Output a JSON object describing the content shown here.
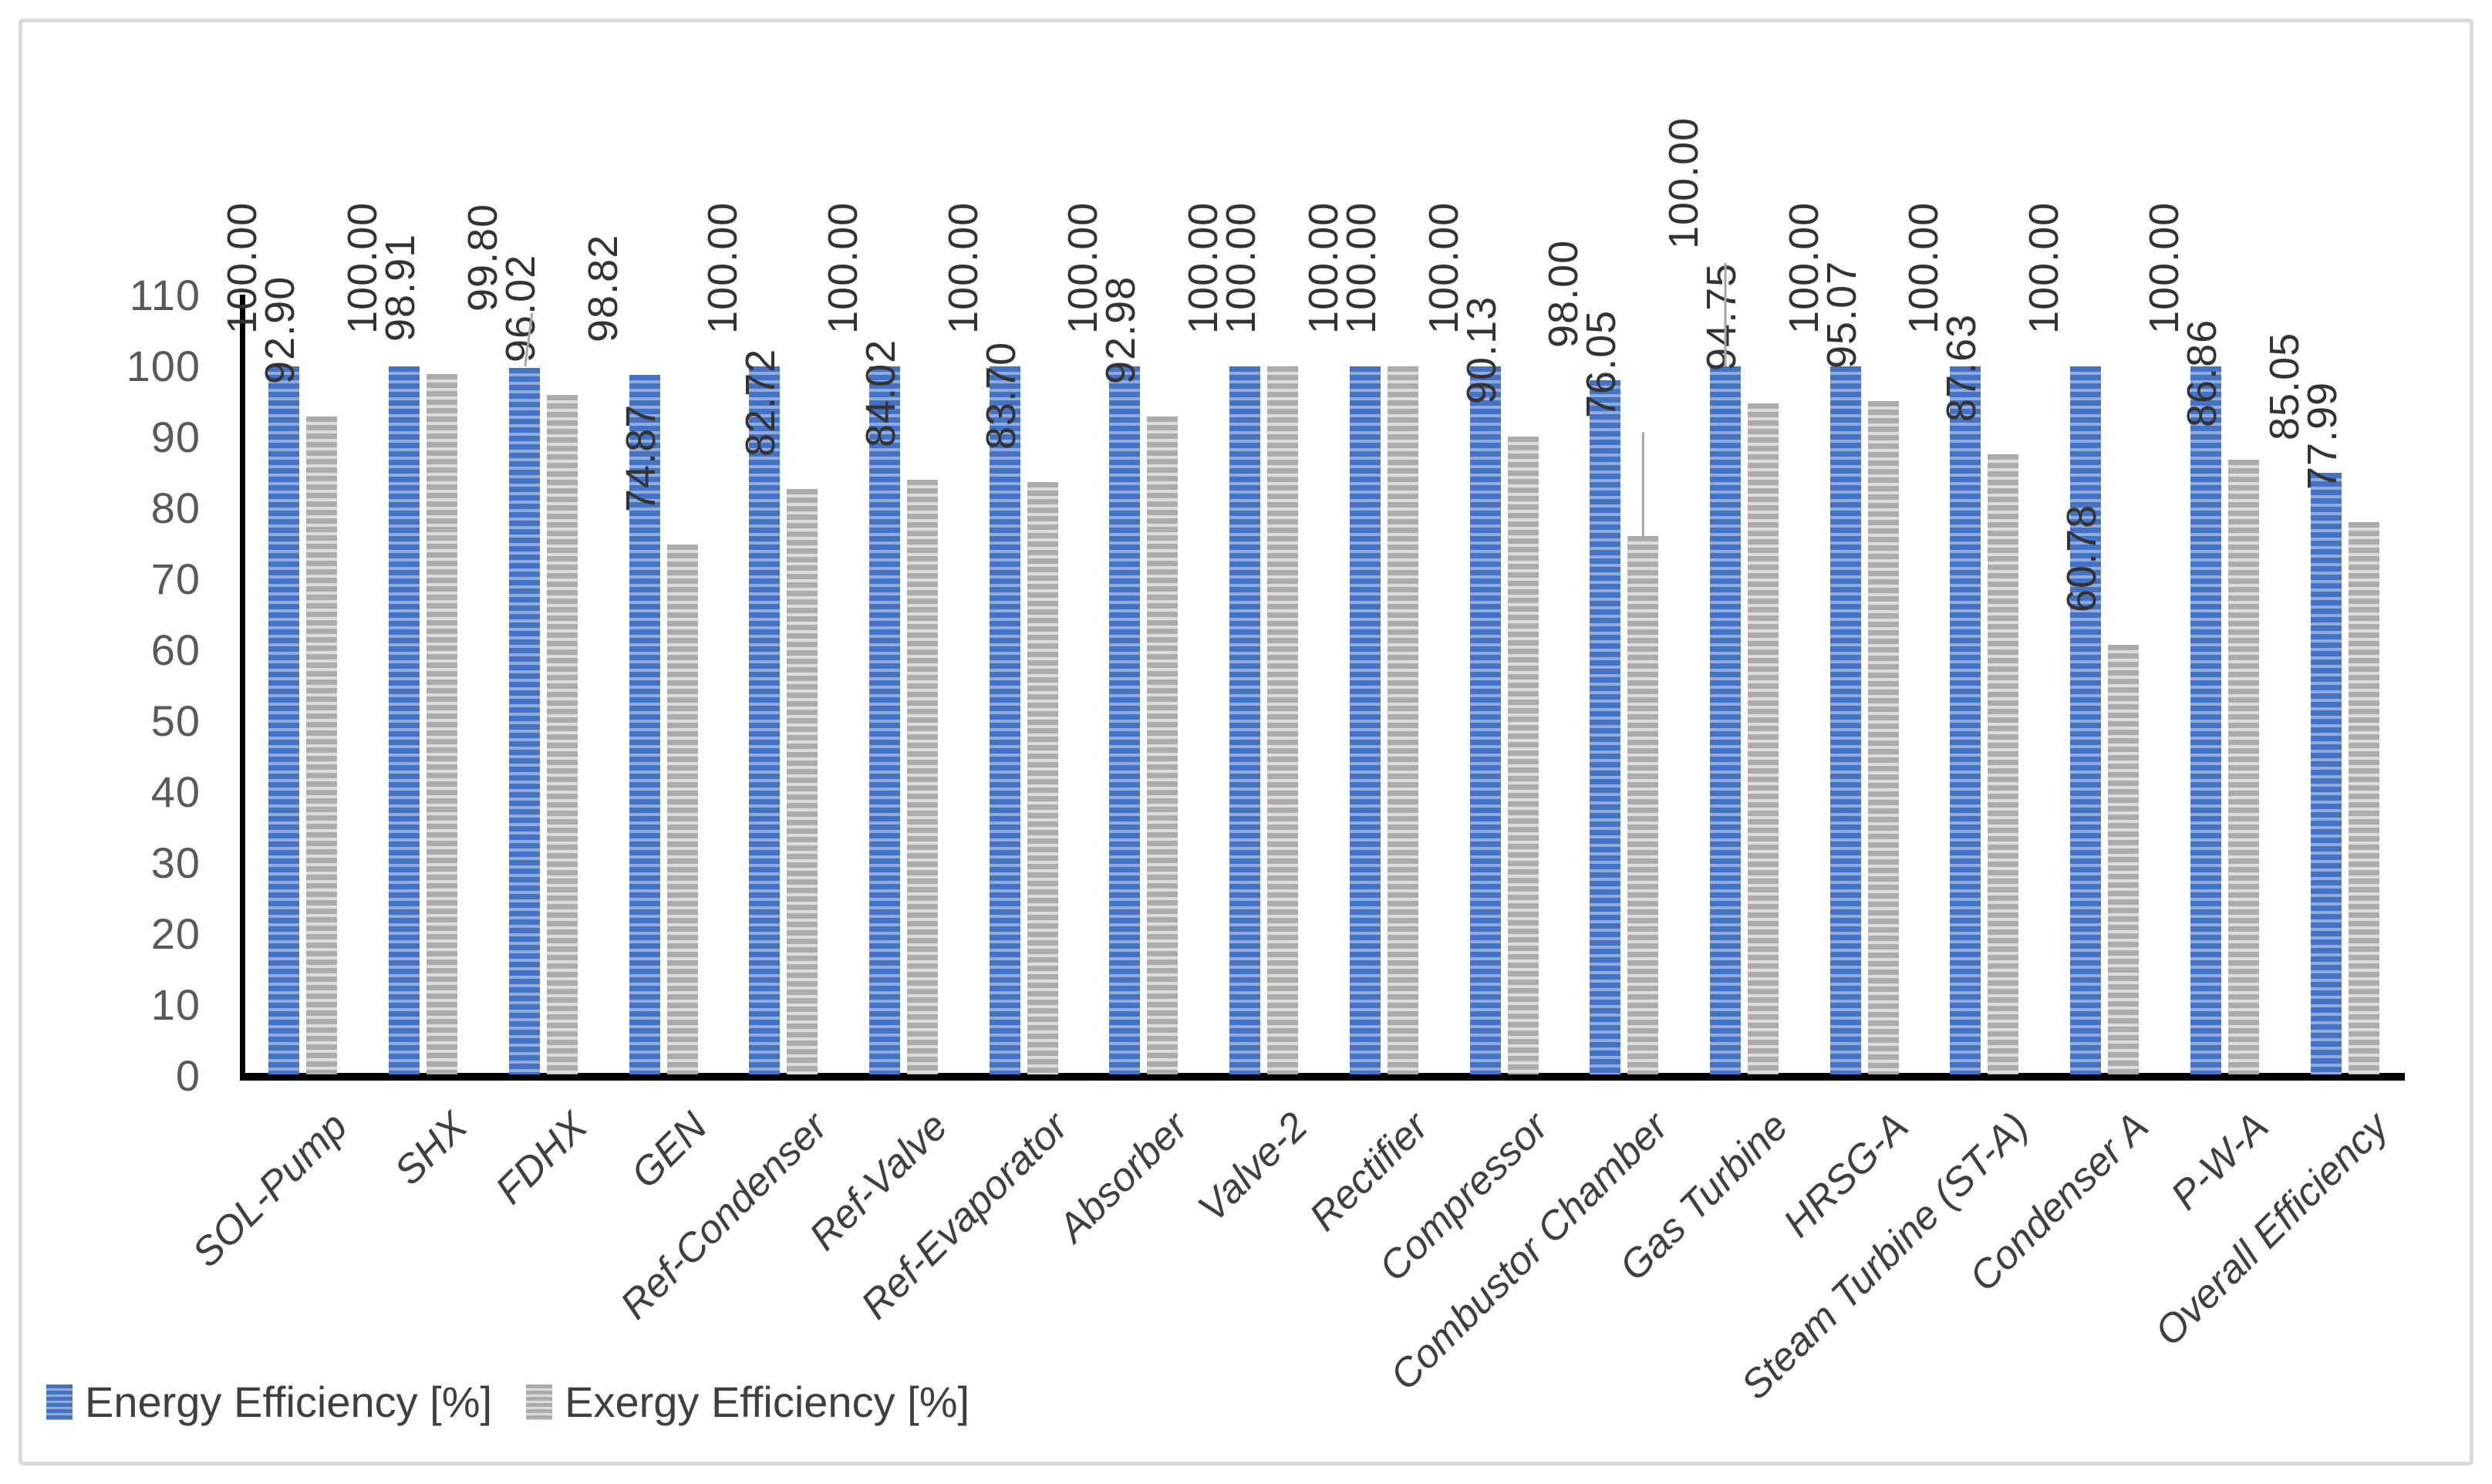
{
  "chart_data": {
    "type": "bar",
    "title": "",
    "categories": [
      "SOL-Pump",
      "SHX",
      "FDHX",
      "GEN",
      "Ref-Condenser",
      "Ref-Valve",
      "Ref-Evaporator",
      "Absorber",
      "Valve-2",
      "Rectifier",
      "Compressor",
      "Combustor Chamber",
      "Gas Turbine",
      "HRSG-A",
      "Steam Turbine (ST-A)",
      "Condenser A",
      "P-W-A",
      "Overall Efficiency"
    ],
    "series": [
      {
        "name": "Energy Efficiency [%]",
        "color": "#4472C4",
        "stripe_color": "#8FAADC",
        "values": [
          100.0,
          100.0,
          99.8,
          98.82,
          100.0,
          100.0,
          100.0,
          100.0,
          100.0,
          100.0,
          100.0,
          98.0,
          100.0,
          100.0,
          100.0,
          100.0,
          100.0,
          85.05
        ],
        "labels": [
          "100.00",
          "100.00",
          "99.80",
          "98.82",
          "100.00",
          "100.00",
          "100.00",
          "100.00",
          "100.00",
          "100.00",
          "100.00",
          "98.00",
          "100.00",
          "100.00",
          "100.00",
          "100.00",
          "100.00",
          "85.05"
        ]
      },
      {
        "name": "Exergy Efficiency [%]",
        "color": "#ABABAB",
        "stripe_color": "#DCDCDC",
        "values": [
          92.9,
          98.91,
          96.02,
          74.87,
          82.72,
          84.02,
          83.7,
          92.98,
          100.0,
          100.0,
          90.13,
          76.05,
          94.75,
          95.07,
          87.63,
          60.78,
          86.86,
          77.99
        ],
        "labels": [
          "92.90",
          "98.91",
          "96.02",
          "74.87",
          "82.72",
          "84.02",
          "83.70",
          "92.98",
          "100.00",
          "100.00",
          "90.13",
          "76.05",
          "94.75",
          "95.07",
          "87.63",
          "60.78",
          "86.86",
          "77.99"
        ]
      }
    ],
    "y_axis": {
      "min": 0,
      "max": 110,
      "tick_interval": 10,
      "tick_labels": [
        "0",
        "10",
        "20",
        "30",
        "40",
        "50",
        "60",
        "70",
        "80",
        "90",
        "100",
        "110"
      ]
    },
    "grid": "off",
    "legend_position": "bottom-left",
    "label_annotations": [
      {
        "series": 0,
        "category_index": 2,
        "lift": 73,
        "leader": "diagonal"
      },
      {
        "series": 0,
        "category_index": 12,
        "lift": 152,
        "leader": "vertical"
      },
      {
        "series": 1,
        "category_index": 11,
        "lift": 153,
        "leader": "vertical"
      }
    ],
    "colors": {
      "axis": "#000000",
      "leader_line": "#A6A6A6",
      "tick_label": "#595959",
      "data_label": "#333333",
      "category_label": "#3F3F3F",
      "frame_border": "#D9D9D9",
      "background": "#FFFFFF"
    }
  }
}
